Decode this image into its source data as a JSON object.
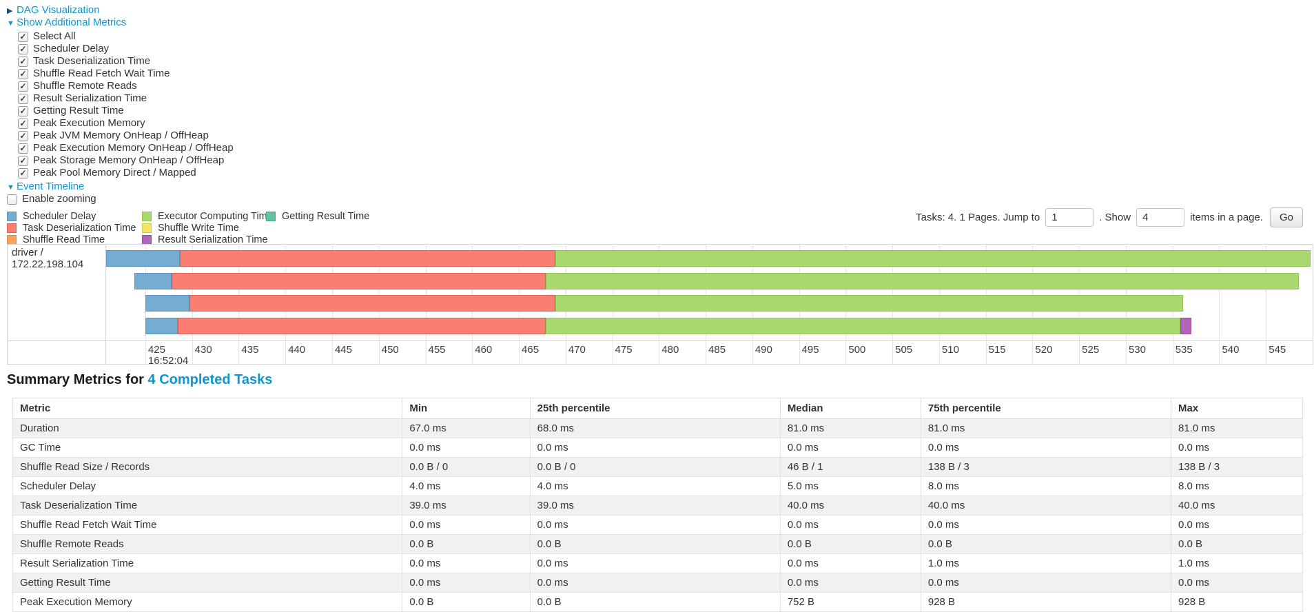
{
  "controls": {
    "dag": {
      "arrow": "▶",
      "label": "DAG Visualization"
    },
    "metrics_toggle": {
      "arrow": "▼",
      "label": "Show Additional Metrics"
    },
    "metric_checkboxes": [
      {
        "label": "Select All",
        "checked": true
      },
      {
        "label": "Scheduler Delay",
        "checked": true
      },
      {
        "label": "Task Deserialization Time",
        "checked": true
      },
      {
        "label": "Shuffle Read Fetch Wait Time",
        "checked": true
      },
      {
        "label": "Shuffle Remote Reads",
        "checked": true
      },
      {
        "label": "Result Serialization Time",
        "checked": true
      },
      {
        "label": "Getting Result Time",
        "checked": true
      },
      {
        "label": "Peak Execution Memory",
        "checked": true
      },
      {
        "label": "Peak JVM Memory OnHeap / OffHeap",
        "checked": true
      },
      {
        "label": "Peak Execution Memory OnHeap / OffHeap",
        "checked": true
      },
      {
        "label": "Peak Storage Memory OnHeap / OffHeap",
        "checked": true
      },
      {
        "label": "Peak Pool Memory Direct / Mapped",
        "checked": true
      }
    ],
    "event_timeline": {
      "arrow": "▼",
      "label": "Event Timeline"
    },
    "enable_zooming": {
      "label": "Enable zooming",
      "checked": false
    }
  },
  "legend": {
    "columns": [
      [
        {
          "key": "scheduler_delay",
          "label": "Scheduler Delay"
        },
        {
          "key": "task_deserialization",
          "label": "Task Deserialization Time"
        },
        {
          "key": "shuffle_read",
          "label": "Shuffle Read Time"
        }
      ],
      [
        {
          "key": "executor_computing",
          "label": "Executor Computing Time"
        },
        {
          "key": "shuffle_write",
          "label": "Shuffle Write Time"
        },
        {
          "key": "result_serialization",
          "label": "Result Serialization Time"
        }
      ],
      [
        {
          "key": "getting_result",
          "label": "Getting Result Time"
        }
      ]
    ]
  },
  "pagination": {
    "prefix": "Tasks: 4. 1 Pages. Jump to",
    "jump_value": "1",
    "mid": ". Show",
    "show_value": "4",
    "suffix": "items in a page.",
    "go_label": "Go"
  },
  "chart_data": {
    "type": "timeline",
    "group_label": "driver / 172.22.198.104",
    "axis": {
      "min": 420.8,
      "max": 550,
      "ticks": [
        425,
        430,
        435,
        440,
        445,
        450,
        455,
        460,
        465,
        470,
        475,
        480,
        485,
        490,
        495,
        500,
        505,
        510,
        515,
        520,
        525,
        530,
        535,
        540,
        545,
        550
      ],
      "time_label": "16:52:04"
    },
    "colors": {
      "scheduler_delay": {
        "fill": "#74ACD2",
        "border": "#5B93BC"
      },
      "task_deserialization": {
        "fill": "#FB7E72",
        "border": "#DE6156"
      },
      "shuffle_read": {
        "fill": "#FBA55C",
        "border": "#DF8A41"
      },
      "executor_computing": {
        "fill": "#A9D86E",
        "border": "#8FC454"
      },
      "shuffle_write": {
        "fill": "#F3E664",
        "border": "#D8CA49"
      },
      "result_serialization": {
        "fill": "#B164B8",
        "border": "#97489F"
      },
      "getting_result": {
        "fill": "#62C3A4",
        "border": "#47AA8A"
      }
    },
    "tasks": [
      {
        "segments": [
          {
            "name": "scheduler_delay",
            "start": 420.8,
            "end": 428.7
          },
          {
            "name": "task_deserialization",
            "start": 428.7,
            "end": 468.9
          },
          {
            "name": "executor_computing",
            "start": 468.9,
            "end": 549.8
          }
        ]
      },
      {
        "segments": [
          {
            "name": "scheduler_delay",
            "start": 423.8,
            "end": 427.8
          },
          {
            "name": "task_deserialization",
            "start": 427.8,
            "end": 467.9
          },
          {
            "name": "executor_computing",
            "start": 467.9,
            "end": 548.5
          }
        ]
      },
      {
        "segments": [
          {
            "name": "scheduler_delay",
            "start": 425.0,
            "end": 429.7
          },
          {
            "name": "task_deserialization",
            "start": 429.7,
            "end": 468.9
          },
          {
            "name": "executor_computing",
            "start": 468.9,
            "end": 536.1
          }
        ]
      },
      {
        "segments": [
          {
            "name": "scheduler_delay",
            "start": 425.0,
            "end": 428.5
          },
          {
            "name": "task_deserialization",
            "start": 428.5,
            "end": 467.9
          },
          {
            "name": "executor_computing",
            "start": 467.9,
            "end": 535.8
          },
          {
            "name": "result_serialization",
            "start": 535.8,
            "end": 537.0
          }
        ]
      }
    ]
  },
  "summary": {
    "title_prefix": "Summary Metrics for ",
    "title_link": "4 Completed Tasks",
    "table": {
      "headers": [
        "Metric",
        "Min",
        "25th percentile",
        "Median",
        "75th percentile",
        "Max"
      ],
      "rows": [
        [
          "Duration",
          "67.0 ms",
          "68.0 ms",
          "81.0 ms",
          "81.0 ms",
          "81.0 ms"
        ],
        [
          "GC Time",
          "0.0 ms",
          "0.0 ms",
          "0.0 ms",
          "0.0 ms",
          "0.0 ms"
        ],
        [
          "Shuffle Read Size / Records",
          "0.0 B / 0",
          "0.0 B / 0",
          "46 B / 1",
          "138 B / 3",
          "138 B / 3"
        ],
        [
          "Scheduler Delay",
          "4.0 ms",
          "4.0 ms",
          "5.0 ms",
          "8.0 ms",
          "8.0 ms"
        ],
        [
          "Task Deserialization Time",
          "39.0 ms",
          "39.0 ms",
          "40.0 ms",
          "40.0 ms",
          "40.0 ms"
        ],
        [
          "Shuffle Read Fetch Wait Time",
          "0.0 ms",
          "0.0 ms",
          "0.0 ms",
          "0.0 ms",
          "0.0 ms"
        ],
        [
          "Shuffle Remote Reads",
          "0.0 B",
          "0.0 B",
          "0.0 B",
          "0.0 B",
          "0.0 B"
        ],
        [
          "Result Serialization Time",
          "0.0 ms",
          "0.0 ms",
          "0.0 ms",
          "1.0 ms",
          "1.0 ms"
        ],
        [
          "Getting Result Time",
          "0.0 ms",
          "0.0 ms",
          "0.0 ms",
          "0.0 ms",
          "0.0 ms"
        ],
        [
          "Peak Execution Memory",
          "0.0 B",
          "0.0 B",
          "752 B",
          "928 B",
          "928 B"
        ]
      ]
    }
  }
}
